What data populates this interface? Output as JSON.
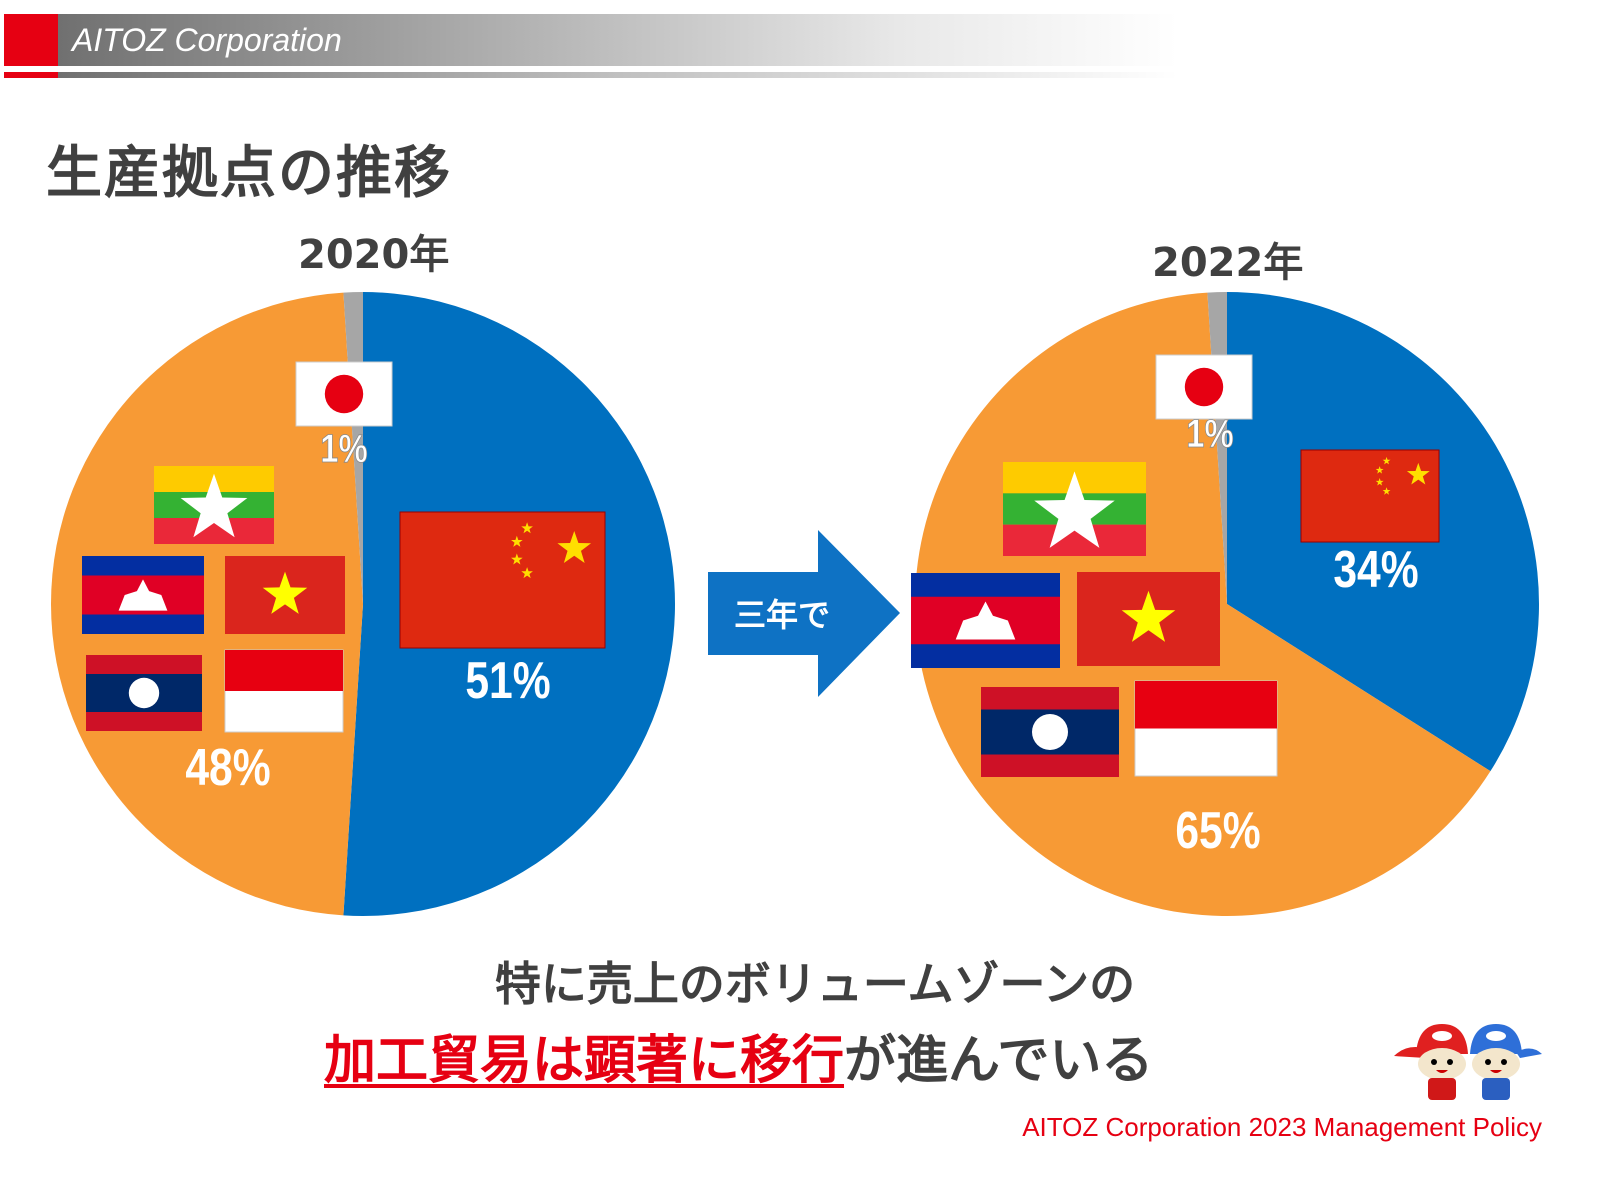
{
  "header": {
    "brand": "AITOZ Corporation"
  },
  "title": "生産拠点の推移",
  "colors": {
    "china": "#0070c0",
    "other": "#f79a35",
    "japan": "#a6a6a6",
    "accent_red": "#e60012",
    "text": "#404040"
  },
  "arrow_label": "三年で",
  "chart_data": [
    {
      "type": "pie",
      "title": "2020年",
      "slices": [
        {
          "label": "51%",
          "value": 51,
          "country": "China",
          "color": "#0070c0"
        },
        {
          "label": "48%",
          "value": 48,
          "country": "Myanmar, Cambodia, Vietnam, Laos, Indonesia",
          "color": "#f79a35"
        },
        {
          "label": "1%",
          "value": 1,
          "country": "Japan",
          "color": "#a6a6a6"
        }
      ]
    },
    {
      "type": "pie",
      "title": "2022年",
      "slices": [
        {
          "label": "34%",
          "value": 34,
          "country": "China",
          "color": "#0070c0"
        },
        {
          "label": "65%",
          "value": 65,
          "country": "Myanmar, Cambodia, Vietnam, Laos, Indonesia",
          "color": "#f79a35"
        },
        {
          "label": "1%",
          "value": 1,
          "country": "Japan",
          "color": "#a6a6a6"
        }
      ]
    }
  ],
  "message": {
    "line1": "特に売上のボリュームゾーンの",
    "line2_highlight": "加工貿易は顕著に移行",
    "line2_rest": "が進んでいる"
  },
  "footer": "AITOZ Corporation 2023 Management Policy",
  "mascots": [
    "AI",
    "TOZ"
  ]
}
